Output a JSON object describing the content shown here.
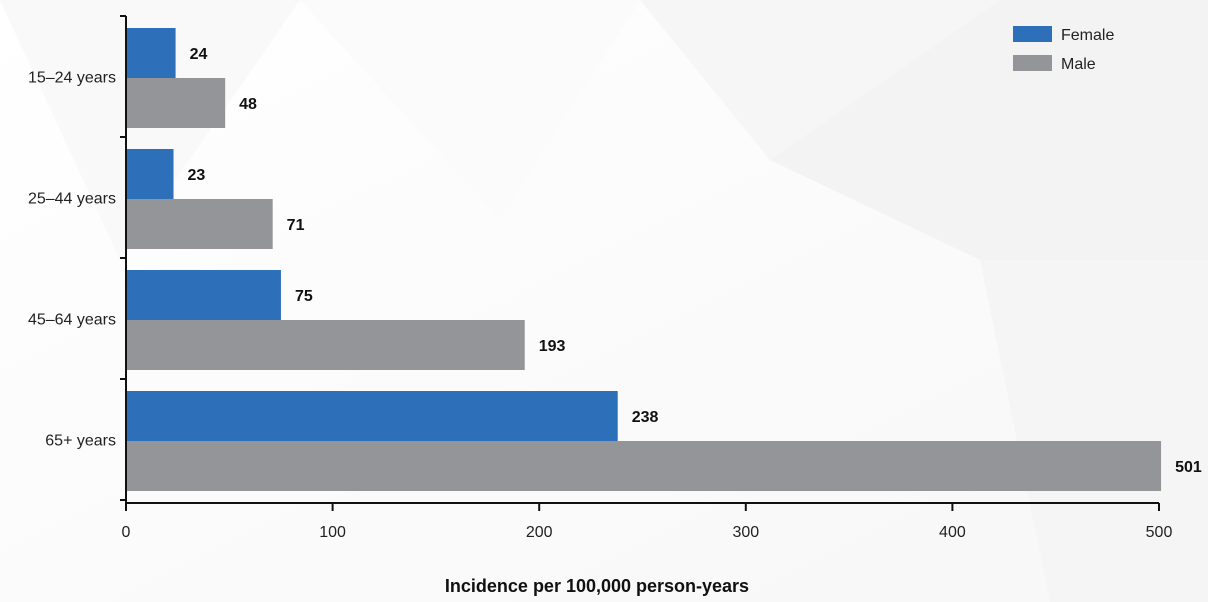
{
  "chart_data": {
    "type": "bar",
    "orientation": "horizontal",
    "categories": [
      "15–24 years",
      "25–44 years",
      "45–64 years",
      "65+ years"
    ],
    "series": [
      {
        "name": "Female",
        "values": [
          24,
          23,
          75,
          238
        ],
        "color": "#2e6fba"
      },
      {
        "name": "Male",
        "values": [
          48,
          71,
          193,
          501
        ],
        "color": "#939598"
      }
    ],
    "value_labels": {
      "Female": [
        "24",
        "23",
        "75",
        "238"
      ],
      "Male": [
        "48",
        "71",
        "193",
        "501"
      ]
    },
    "title": "",
    "xlabel": "Incidence per 100,000 person-years",
    "ylabel": "",
    "xlim": [
      0,
      500
    ],
    "xticks": [
      "0",
      "100",
      "200",
      "300",
      "400",
      "500"
    ],
    "grid": false,
    "legend_position": "top-right"
  }
}
